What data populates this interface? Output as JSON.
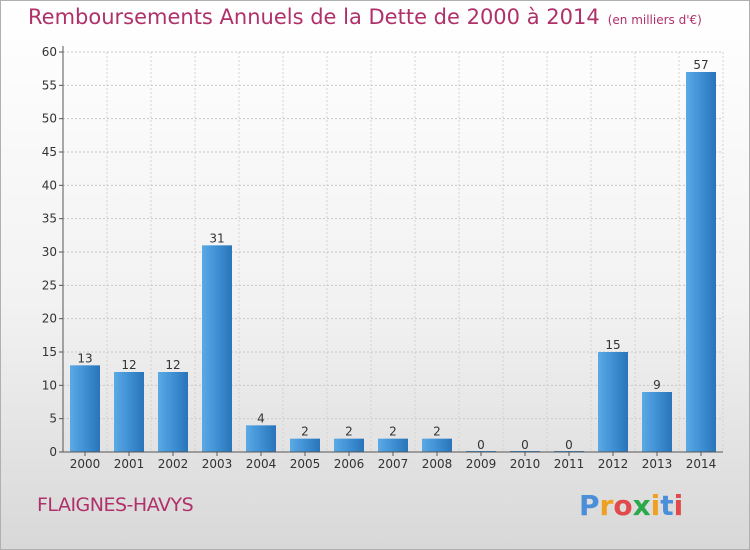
{
  "header": {
    "title": "Remboursements Annuels de la Dette de 2000 à 2014",
    "unit": "(en milliers d'€)"
  },
  "footer": {
    "commune": "FLAIGNES-HAVYS",
    "logo": "Proxiti",
    "logo_colors": [
      "#4a8fd8",
      "#f0a020",
      "#e04a4a",
      "#2ba84a",
      "#f0a020",
      "#4a8fd8",
      "#e04a4a"
    ]
  },
  "chart_data": {
    "type": "bar",
    "categories": [
      "2000",
      "2001",
      "2002",
      "2003",
      "2004",
      "2005",
      "2006",
      "2007",
      "2008",
      "2009",
      "2010",
      "2011",
      "2012",
      "2013",
      "2014"
    ],
    "values": [
      13,
      12,
      12,
      31,
      4,
      2,
      2,
      2,
      2,
      0,
      0,
      0,
      15,
      9,
      57
    ],
    "ylim": [
      0,
      60
    ],
    "yticks": [
      0,
      5,
      10,
      15,
      20,
      25,
      30,
      35,
      40,
      45,
      50,
      55,
      60
    ],
    "grid": true,
    "bar_color": "#3d8fd5"
  }
}
